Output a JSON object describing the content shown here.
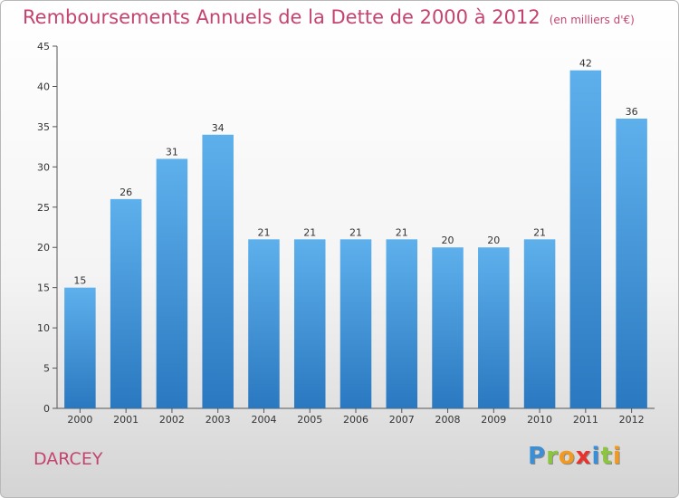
{
  "chart_data": {
    "type": "bar",
    "title": "Remboursements Annuels de la Dette de 2000 à 2012",
    "subtitle": "(en milliers d'€)",
    "categories": [
      "2000",
      "2001",
      "2002",
      "2003",
      "2004",
      "2005",
      "2006",
      "2007",
      "2008",
      "2009",
      "2010",
      "2011",
      "2012"
    ],
    "values": [
      15,
      26,
      31,
      34,
      21,
      21,
      21,
      21,
      20,
      20,
      21,
      42,
      36
    ],
    "data_labels": [
      "15",
      "26",
      "31",
      "34",
      "21",
      "21",
      "21",
      "21",
      "20",
      "20",
      "21",
      "42",
      "36"
    ],
    "ylim": [
      0,
      45
    ],
    "yticks": [
      0,
      5,
      10,
      15,
      20,
      25,
      30,
      35,
      40,
      45
    ],
    "grid": false,
    "bar_color": "#3a8fd8"
  },
  "town": "DARCEY",
  "logo": {
    "letters": [
      {
        "char": "P",
        "color": "#3b8fd6"
      },
      {
        "char": "r",
        "color": "#8cc63e"
      },
      {
        "char": "o",
        "color": "#f39a1e"
      },
      {
        "char": "x",
        "color": "#e8322b"
      },
      {
        "char": "i",
        "color": "#3b8fd6"
      },
      {
        "char": "t",
        "color": "#8cc63e"
      },
      {
        "char": "i",
        "color": "#f39a1e"
      }
    ]
  }
}
